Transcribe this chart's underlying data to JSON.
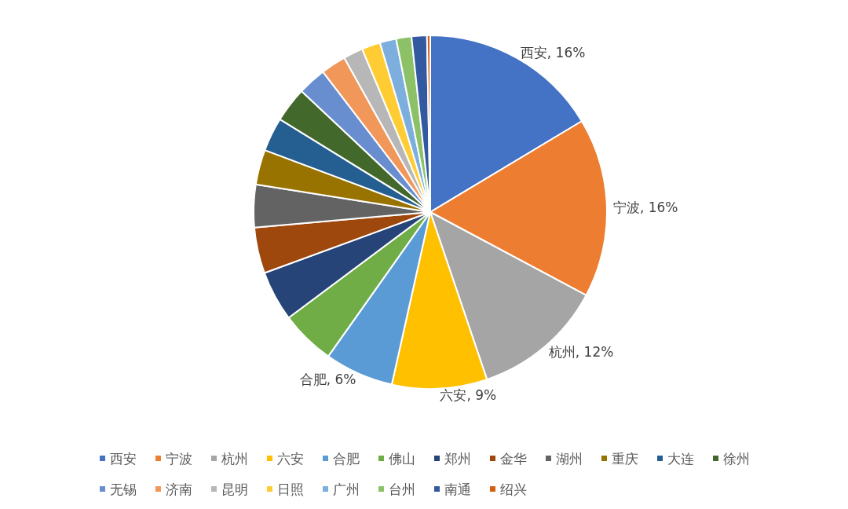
{
  "chart_data": {
    "type": "pie",
    "categories": [
      "西安",
      "宁波",
      "杭州",
      "六安",
      "合肥",
      "佛山",
      "郑州",
      "金华",
      "湖州",
      "重庆",
      "大连",
      "徐州",
      "无锡",
      "济南",
      "昆明",
      "日照",
      "广州",
      "台州",
      "南通",
      "绍兴"
    ],
    "values": [
      16.4,
      16.4,
      12,
      8.7,
      6.3,
      5.0,
      4.6,
      4.2,
      3.9,
      3.2,
      3.1,
      3.2,
      2.6,
      2.3,
      1.8,
      1.7,
      1.5,
      1.4,
      1.4,
      0.3
    ],
    "colors": [
      "#4472c4",
      "#ed7d31",
      "#a5a5a5",
      "#ffc000",
      "#5b9bd5",
      "#70ad47",
      "#264478",
      "#9e480e",
      "#636363",
      "#997300",
      "#255e91",
      "#43682b",
      "#698ed0",
      "#f1975a",
      "#b7b7b7",
      "#ffcd33",
      "#7cafdd",
      "#8cc168",
      "#335aa1",
      "#d26012"
    ],
    "value_labels": [
      "西安, 16%",
      "宁波, 16%",
      "杭州, 12%",
      "六安, 9%",
      "合肥, 6%",
      null,
      null,
      null,
      null,
      null,
      null,
      null,
      null,
      null,
      null,
      null,
      null,
      null,
      null,
      null
    ],
    "legend": "bottom"
  }
}
